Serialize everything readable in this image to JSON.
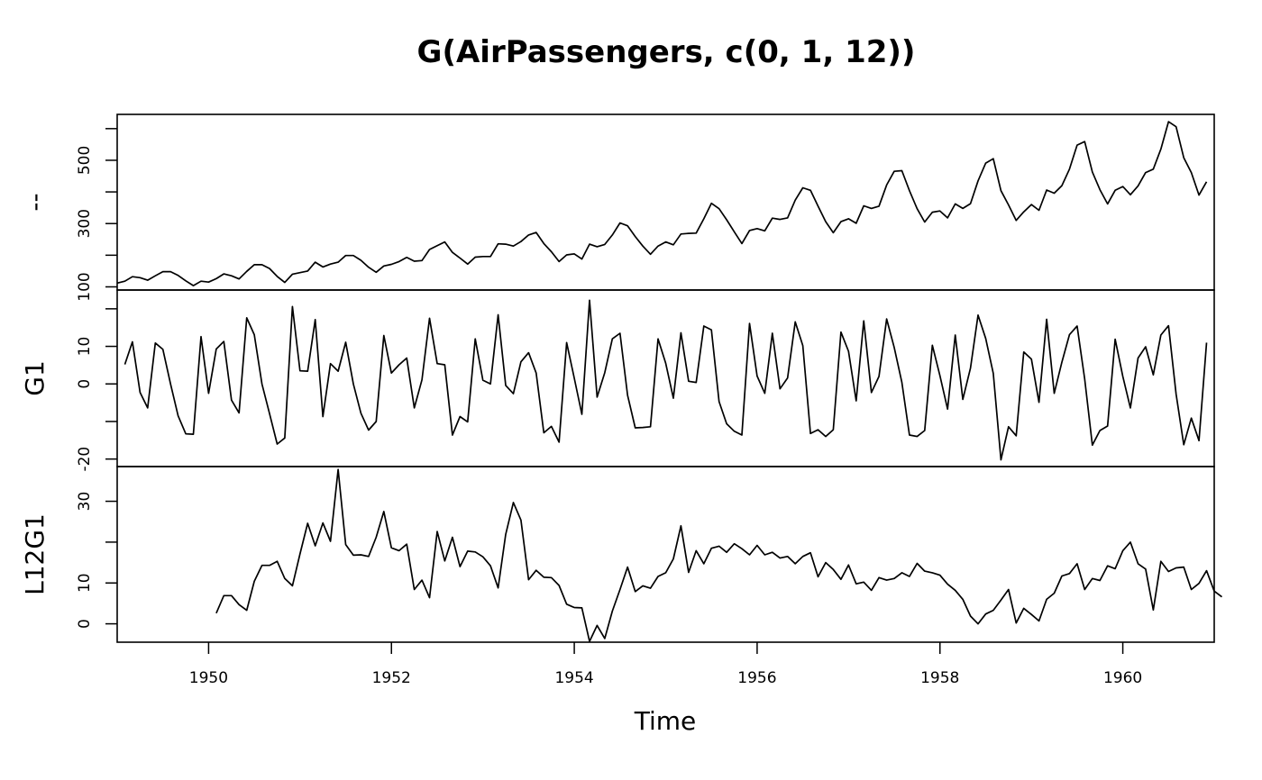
{
  "chart_data": {
    "type": "line",
    "title": "G(AirPassengers, c(0, 1, 12))",
    "xlabel": "Time",
    "xlim": [
      1949,
      1961
    ],
    "x_ticks": [
      1950,
      1952,
      1954,
      1956,
      1958,
      1960
    ],
    "x_start": 1949.0,
    "x_step": 0.0833333,
    "panels": [
      {
        "name": "--",
        "ylim": [
          90,
          645
        ],
        "y_ticks": [
          100,
          300,
          500
        ],
        "y_minor_ticks": [
          200,
          400,
          600
        ],
        "values": [
          112,
          118,
          132,
          129,
          121,
          135,
          148,
          148,
          136,
          119,
          104,
          118,
          115,
          126,
          141,
          135,
          125,
          149,
          170,
          170,
          158,
          133,
          114,
          140,
          145,
          150,
          178,
          163,
          172,
          178,
          199,
          199,
          184,
          162,
          146,
          166,
          171,
          180,
          193,
          181,
          183,
          218,
          230,
          242,
          209,
          191,
          172,
          194,
          196,
          196,
          236,
          235,
          229,
          243,
          264,
          272,
          237,
          211,
          180,
          201,
          204,
          188,
          235,
          227,
          234,
          264,
          302,
          293,
          259,
          229,
          203,
          229,
          242,
          233,
          267,
          269,
          270,
          315,
          364,
          347,
          312,
          274,
          237,
          278,
          284,
          277,
          317,
          313,
          318,
          374,
          413,
          405,
          355,
          306,
          271,
          306,
          315,
          301,
          356,
          348,
          355,
          422,
          465,
          467,
          404,
          347,
          305,
          336,
          340,
          318,
          362,
          348,
          363,
          435,
          491,
          505,
          404,
          359,
          310,
          337,
          360,
          342,
          406,
          396,
          420,
          472,
          548,
          559,
          463,
          407,
          362,
          405,
          417,
          391,
          419,
          461,
          472,
          535,
          622,
          606,
          508,
          461,
          390,
          432
        ]
      },
      {
        "name": "G1",
        "ylim": [
          -22,
          25
        ],
        "y_ticks": [
          -20,
          0,
          10
        ],
        "y_minor_ticks": [
          -10,
          20
        ],
        "values": [
          5.2,
          11.2,
          -2.3,
          -6.4,
          10.9,
          9.2,
          0,
          -8.5,
          -13.3,
          -13.4,
          12.6,
          -2.5,
          9.3,
          11.3,
          -4.3,
          -7.7,
          17.6,
          13.1,
          0,
          -7.9,
          -16.0,
          -14.4,
          20.6,
          3.5,
          3.4,
          17.1,
          -8.7,
          5.4,
          3.4,
          11.1,
          0,
          -7.8,
          -12.3,
          -10.0,
          12.9,
          2.9,
          5.1,
          6.9,
          -6.4,
          1.1,
          17.5,
          5.4,
          5.1,
          -13.6,
          -8.7,
          -10.1,
          12.0,
          1.0,
          0,
          18.4,
          -0.4,
          -2.6,
          5.9,
          8.3,
          2.9,
          -13.0,
          -11.3,
          -15.5,
          11.0,
          1.5,
          -8.1,
          22.3,
          -3.5,
          3.0,
          12.0,
          13.5,
          -3.0,
          -11.7,
          -11.6,
          -11.4,
          12.0,
          5.5,
          -3.8,
          13.6,
          0.7,
          0.4,
          15.4,
          14.4,
          -4.7,
          -10.6,
          -12.6,
          -13.6,
          16.1,
          2.1,
          -2.5,
          13.5,
          -1.3,
          1.6,
          16.5,
          10.2,
          -13.2,
          -12.2,
          -14.0,
          -12.2,
          13.8,
          8.7,
          -4.5,
          16.8,
          -2.3,
          2.0,
          17.3,
          9.7,
          0.4,
          -13.6,
          -14.0,
          -12.4,
          10.3,
          2.2,
          -6.7,
          13.0,
          -4.1,
          4.2,
          18.3,
          12.1,
          2.8,
          -20.2,
          -11.4,
          -13.8,
          8.5,
          6.6,
          -4.9,
          17.2,
          -2.5,
          5.8,
          13.1,
          15.4,
          1.3,
          -16.3,
          -12.4,
          -11.2,
          11.9,
          2.0,
          -6.4,
          6.9,
          9.9,
          2.4,
          13.0,
          15.5,
          -2.7,
          -16.2,
          -9.1,
          -15.1,
          11.0
        ]
      },
      {
        "name": "L12G1",
        "ylim": [
          -4.5,
          38.5
        ],
        "y_ticks": [
          0,
          10,
          30
        ],
        "y_minor_ticks": [
          20
        ],
        "values": [
          2.6,
          6.9,
          6.9,
          4.7,
          3.3,
          10.4,
          14.3,
          14.3,
          15.3,
          11.1,
          9.3,
          17.1,
          24.6,
          19.1,
          24.7,
          20.2,
          37.8,
          19.4,
          16.8,
          16.9,
          16.5,
          21.2,
          27.5,
          18.6,
          17.9,
          19.5,
          8.4,
          10.7,
          6.4,
          22.6,
          15.4,
          21.2,
          14.0,
          17.8,
          17.6,
          16.4,
          14.2,
          8.8,
          21.9,
          29.7,
          25.4,
          10.8,
          13.1,
          11.4,
          11.3,
          9.4,
          4.8,
          4.0,
          3.9,
          -4.3,
          -0.4,
          -3.6,
          3.1,
          8.4,
          13.9,
          7.9,
          9.3,
          8.7,
          11.6,
          12.5,
          15.9,
          24.0,
          12.6,
          17.9,
          14.7,
          18.5,
          19.0,
          17.5,
          19.6,
          18.4,
          16.9,
          19.2,
          16.9,
          17.5,
          16.1,
          16.5,
          14.7,
          16.5,
          17.4,
          11.5,
          15.0,
          13.3,
          10.9,
          14.4,
          9.8,
          10.2,
          8.2,
          11.3,
          10.7,
          11.1,
          12.5,
          11.6,
          14.8,
          12.9,
          12.5,
          11.9,
          9.7,
          8.2,
          6.0,
          1.9,
          0,
          2.4,
          3.3,
          5.8,
          8.4,
          0.2,
          3.8,
          2.3,
          0.7,
          6.0,
          7.5,
          11.7,
          12.3,
          14.7,
          8.4,
          11.1,
          10.6,
          14.2,
          13.5,
          17.9,
          20.0,
          14.7,
          13.4,
          3.4,
          15.3,
          12.8,
          13.7,
          13.9,
          8.4,
          9.9,
          13.0,
          8.0,
          6.6
        ]
      }
    ]
  }
}
